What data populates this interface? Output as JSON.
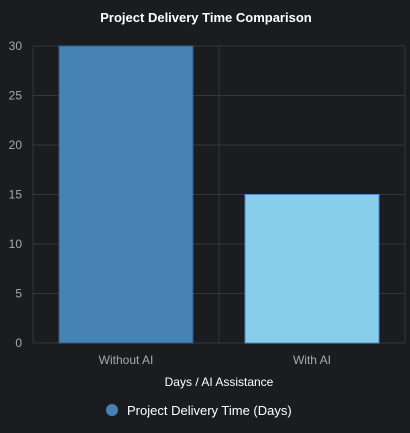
{
  "chart_data": {
    "type": "bar",
    "title": "Project Delivery Time Comparison",
    "categories": [
      "Without AI",
      "With AI"
    ],
    "series": [
      {
        "name": "Project Delivery Time (Days)",
        "values": [
          30,
          15
        ]
      }
    ],
    "xlabel": "Days / AI Assistance",
    "ylabel": "",
    "ylim": [
      0,
      30
    ],
    "yticks": [
      0,
      5,
      10,
      15,
      20,
      25,
      30
    ],
    "grid": true,
    "legend_position": "bottom",
    "colors": {
      "background": "#1b1c1f",
      "grid": "#34363b",
      "bar_fills": [
        "#4682b4",
        "#87ceeb"
      ],
      "bar_strokes": [
        "#2f5f8f",
        "#4f8fd0"
      ],
      "legend_marker": "#4682b4"
    }
  }
}
